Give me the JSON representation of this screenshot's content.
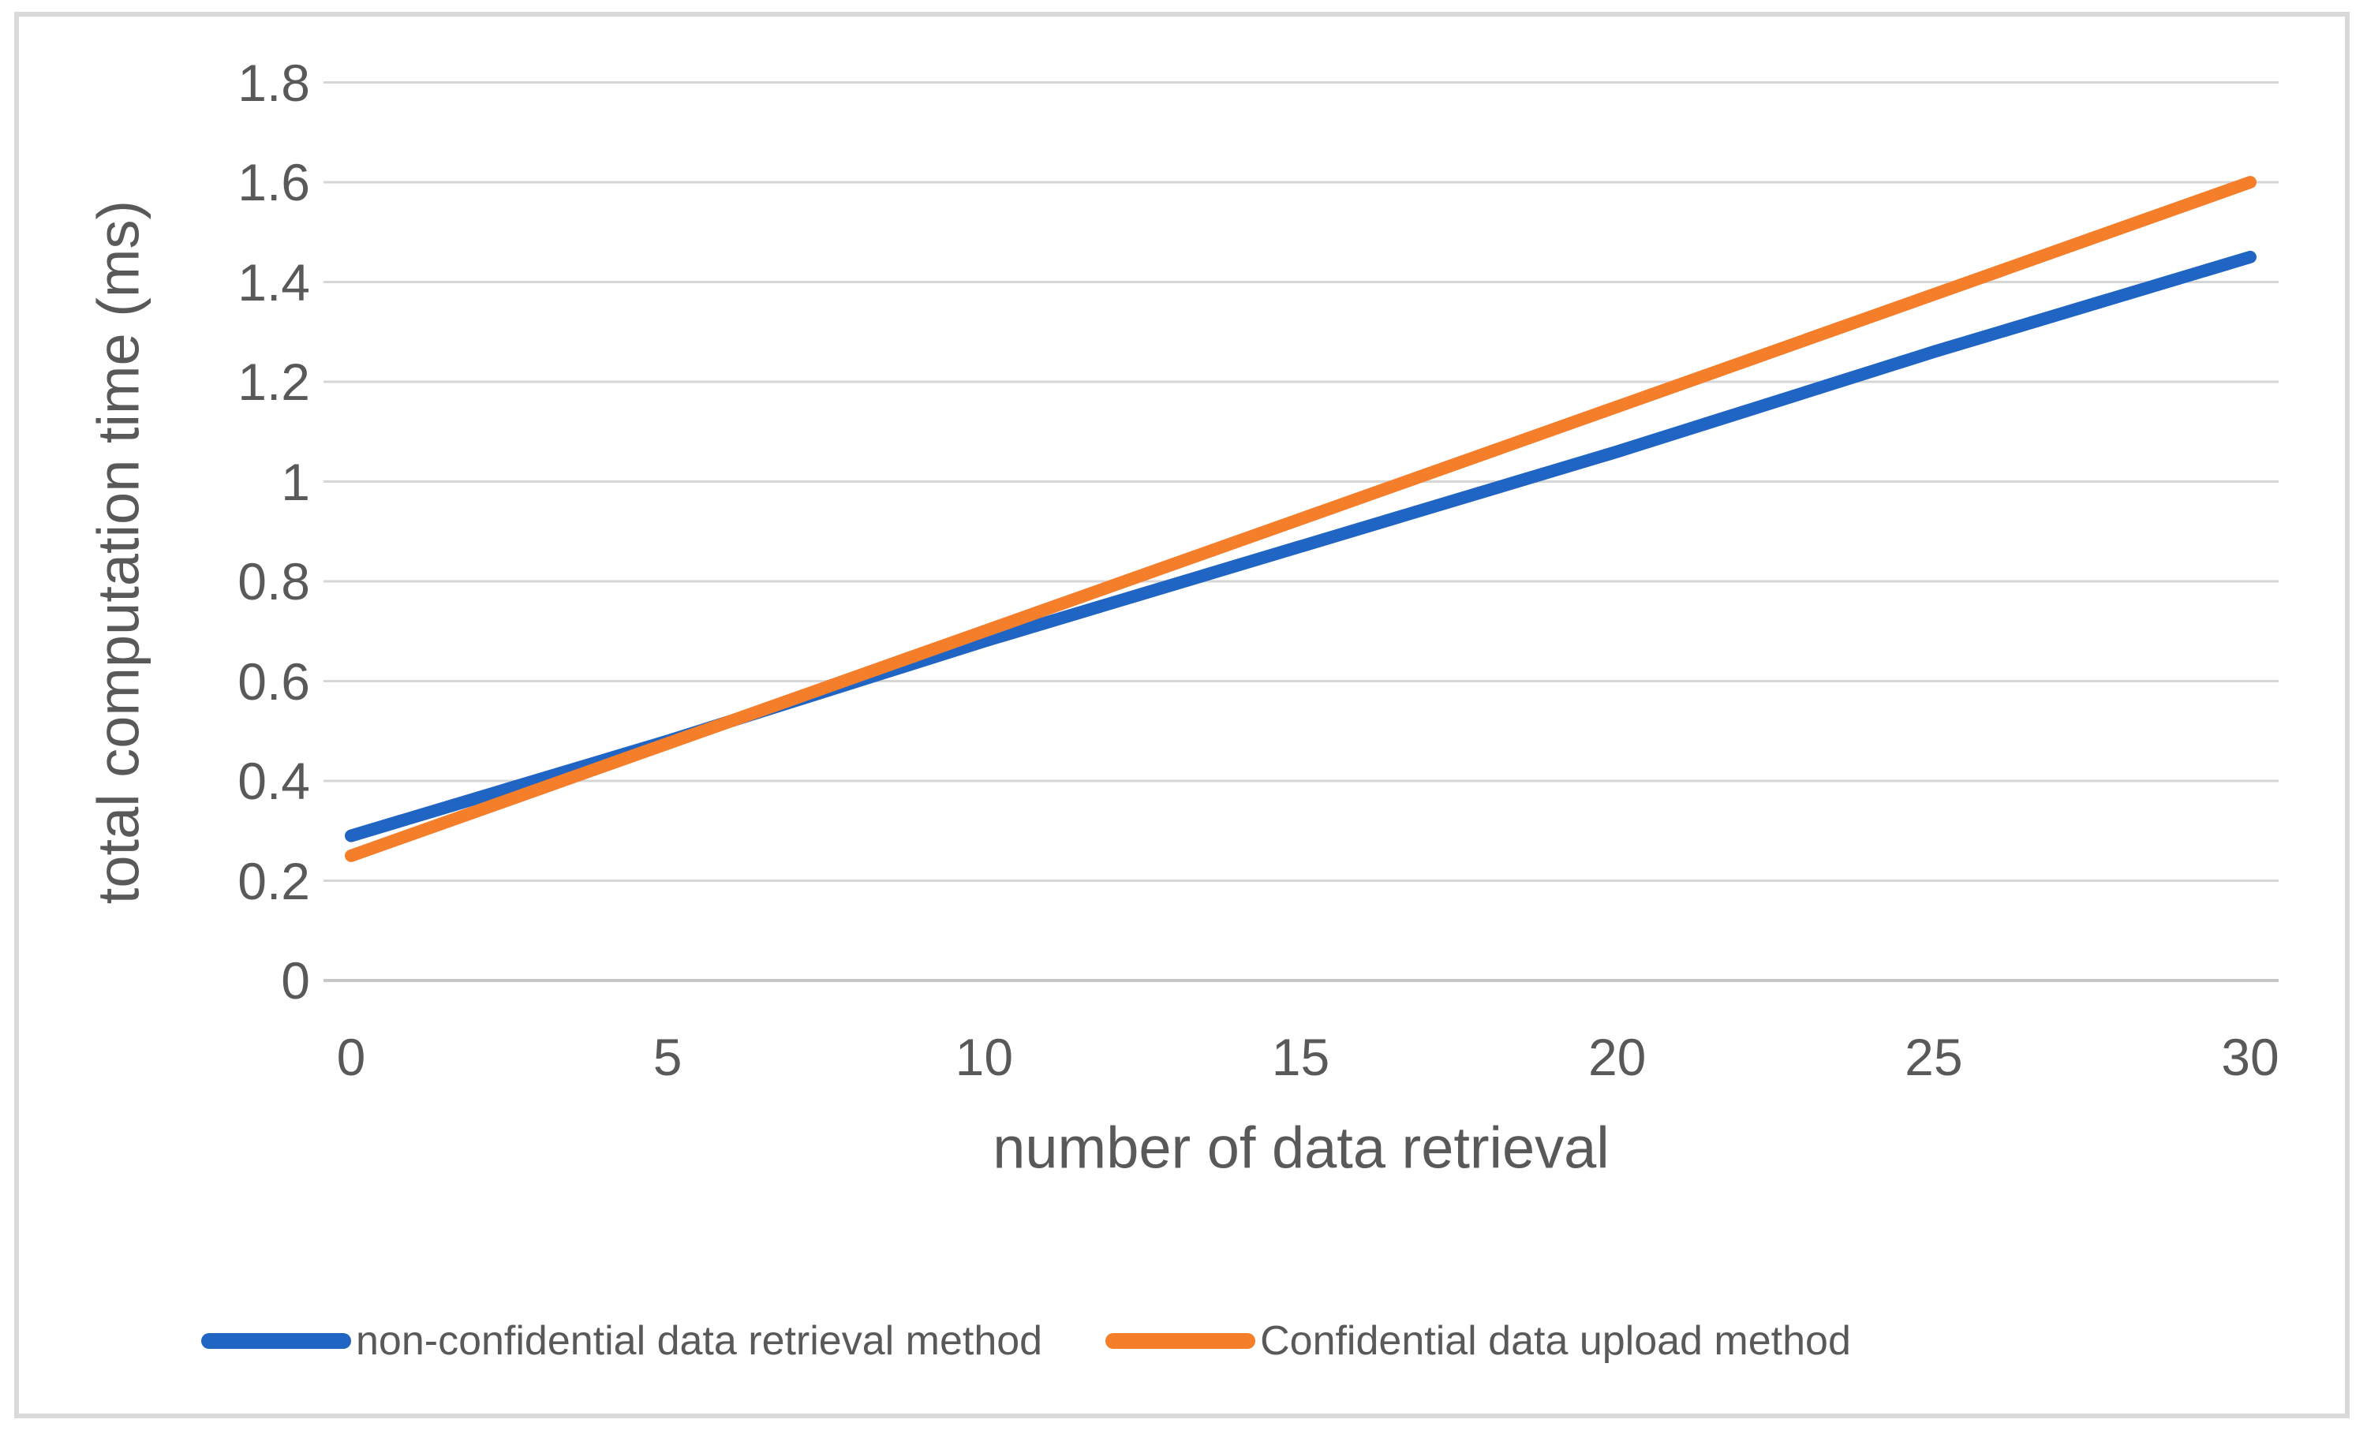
{
  "chart_data": {
    "type": "line",
    "title": "",
    "xlabel": "number of data retrieval",
    "ylabel": "total computation time (ms)",
    "x": [
      0,
      5,
      10,
      15,
      20,
      25,
      30
    ],
    "x_tick_labels": [
      "0",
      "5",
      "10",
      "15",
      "20",
      "25",
      "30"
    ],
    "y_ticks": [
      0,
      0.2,
      0.4,
      0.6,
      0.8,
      1,
      1.2,
      1.4,
      1.6,
      1.8
    ],
    "y_tick_labels": [
      "0",
      "0.2",
      "0.4",
      "0.6",
      "0.8",
      "1",
      "1.2",
      "1.4",
      "1.6",
      "1.8"
    ],
    "xlim": [
      0,
      30
    ],
    "ylim": [
      0,
      1.8
    ],
    "grid": "horizontal",
    "legend_position": "bottom",
    "series": [
      {
        "name": "non-confidential data retrieval method",
        "color": "#2065C4",
        "values": [
          0.29,
          0.48,
          0.68,
          0.87,
          1.06,
          1.26,
          1.45
        ]
      },
      {
        "name": "Confidential data upload method",
        "color": "#F57E2A",
        "values": [
          0.25,
          0.475,
          0.7,
          0.925,
          1.15,
          1.375,
          1.6
        ]
      }
    ]
  },
  "colors": {
    "gridline": "#D6D6D6",
    "baseline": "#C6C6C6",
    "axis_text": "#595959",
    "frame_border": "#D9D9D9",
    "background": "#FFFFFF"
  }
}
